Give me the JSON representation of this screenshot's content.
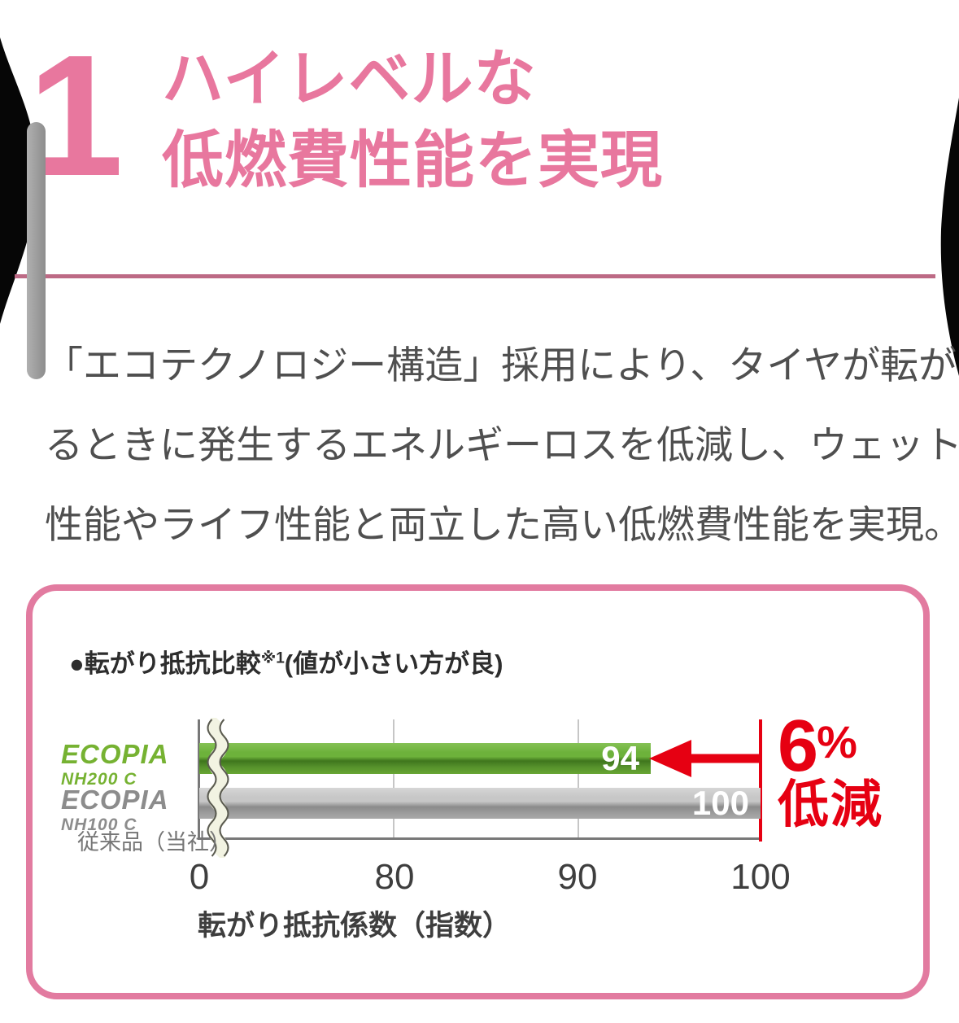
{
  "page": {
    "section_number": "1",
    "heading_line1": "ハイレベルな",
    "heading_line2": "低燃費性能を実現",
    "paragraph_lines": [
      "「エコテクノロジー構造」採用により、タイヤが転が",
      "るときに発生するエネルギーロスを低減し、ウェット",
      "性能やライフ性能と両立した高い低燃費性能を実現。"
    ]
  },
  "chart_card": {
    "title_main": "●転がり抵抗比較",
    "title_sup": "※1",
    "title_paren": "(値が小さい方が良)",
    "series": [
      {
        "brand": "ECOPIA",
        "model": "NH200 C"
      },
      {
        "brand": "ECOPIA",
        "model": "NH100 C",
        "note": "従来品（当社）"
      }
    ],
    "annotation_number": "6",
    "annotation_percent": "%",
    "annotation_label": "低減"
  },
  "chart_data": {
    "type": "bar",
    "orientation": "horizontal",
    "title": "転がり抵抗比較※1(値が小さい方が良)",
    "categories": [
      "ECOPIA NH200 C",
      "ECOPIA NH100 C 従来品（当社）"
    ],
    "values": [
      94,
      100
    ],
    "value_labels": [
      "94",
      "100"
    ],
    "bar_colors": [
      "#6db23b",
      "#b0b0b0"
    ],
    "value_label_color": "#ffffff",
    "xlabel": "転がり抵抗係数（指数）",
    "x_ticks": [
      "0",
      "80",
      "90",
      "100"
    ],
    "x_tick_values": [
      0,
      80,
      90,
      100
    ],
    "xlim": [
      0,
      100
    ],
    "axis_break_between": [
      0,
      80
    ],
    "grid": "vertical",
    "legend_position": "left",
    "annotation": {
      "text": "6%低減",
      "color": "#e60012"
    }
  },
  "colors": {
    "accent_pink": "#e8779e",
    "divider_pink": "#bd6a85",
    "card_border_pink": "#e27ba0",
    "red": "#e60012",
    "ecopia_green": "#76b232",
    "logo_gray": "#8c8c8c",
    "body_text": "#4f4f4f"
  }
}
